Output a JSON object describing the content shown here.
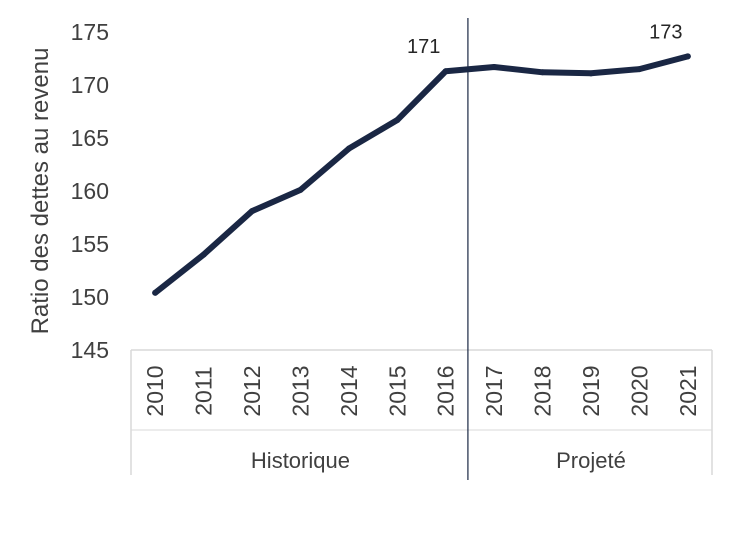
{
  "chart_data": {
    "type": "line",
    "title": "",
    "ylabel": "Ratio des dettes au revenu",
    "xlabel": "",
    "ylim": [
      145,
      175
    ],
    "yticks": [
      145,
      150,
      155,
      160,
      165,
      170,
      175
    ],
    "categories": [
      "2010",
      "2011",
      "2012",
      "2013",
      "2014",
      "2015",
      "2016",
      "2017",
      "2018",
      "2019",
      "2020",
      "2021"
    ],
    "series": [
      {
        "name": "Ratio des dettes au revenu",
        "color": "#1a2744",
        "values": [
          150.4,
          154.0,
          158.1,
          160.1,
          164.0,
          166.7,
          171.3,
          171.7,
          171.2,
          171.1,
          171.5,
          172.7
        ]
      }
    ],
    "annotations": [
      {
        "index": 6,
        "text": "171"
      },
      {
        "index": 11,
        "text": "173"
      }
    ],
    "groups": [
      {
        "label": "Historique",
        "start": 0,
        "end": 6
      },
      {
        "label": "Projeté",
        "start": 7,
        "end": 11
      }
    ],
    "divider_after_index": 6,
    "grid": false
  }
}
